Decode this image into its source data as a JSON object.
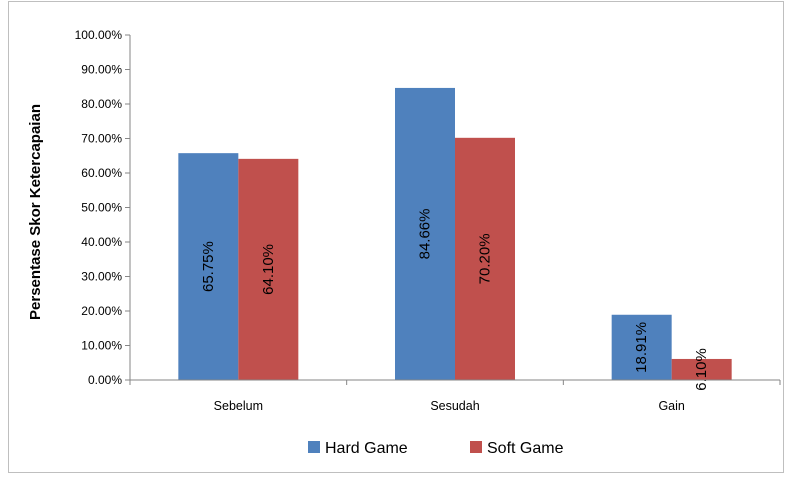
{
  "chart_data": {
    "type": "bar",
    "title": "",
    "xlabel": "",
    "ylabel": "Persentase Skor Ketercapaian",
    "categories": [
      "Sebelum",
      "Sesudah",
      "Gain"
    ],
    "series": [
      {
        "name": "Hard Game",
        "color": "#4f81bd",
        "values": [
          65.75,
          84.66,
          18.91
        ],
        "labels": [
          "65.75%",
          "84.66%",
          "18.91%"
        ]
      },
      {
        "name": "Soft Game",
        "color": "#c0504d",
        "values": [
          64.1,
          70.2,
          6.1
        ],
        "labels": [
          "64.10%",
          "70.20%",
          "6.10%"
        ]
      }
    ],
    "ylim": [
      0,
      100
    ],
    "yticks": [
      0,
      10,
      20,
      30,
      40,
      50,
      60,
      70,
      80,
      90,
      100
    ],
    "ytick_labels": [
      "0.00%",
      "10.00%",
      "20.00%",
      "30.00%",
      "40.00%",
      "50.00%",
      "60.00%",
      "70.00%",
      "80.00%",
      "90.00%",
      "100.00%"
    ],
    "grid": false,
    "legend_position": "bottom"
  }
}
